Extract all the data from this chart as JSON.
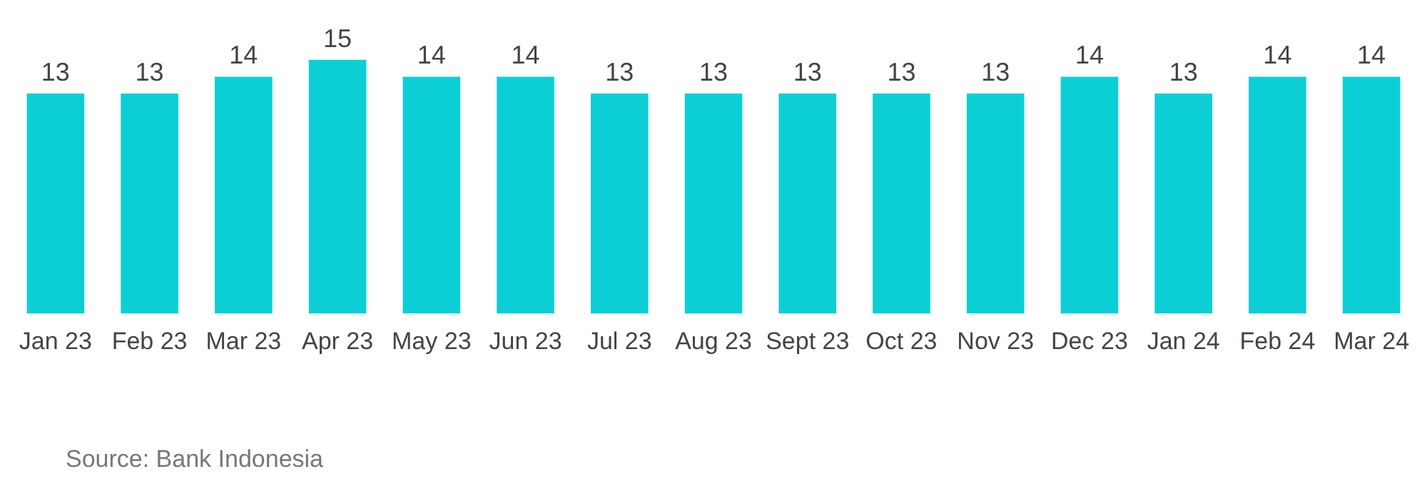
{
  "chart_data": {
    "type": "bar",
    "categories": [
      "Jan 23",
      "Feb 23",
      "Mar 23",
      "Apr 23",
      "May 23",
      "Jun 23",
      "Jul 23",
      "Aug 23",
      "Sept 23",
      "Oct 23",
      "Nov 23",
      "Dec 23",
      "Jan 24",
      "Feb 24",
      "Mar 24"
    ],
    "values": [
      13,
      13,
      14,
      15,
      14,
      14,
      13,
      13,
      13,
      13,
      13,
      14,
      13,
      14,
      14
    ],
    "color": "#0ccfd5",
    "data_labels": true,
    "grid": false,
    "legend": false,
    "annotations": [
      "Source:  Bank Indonesia"
    ]
  }
}
